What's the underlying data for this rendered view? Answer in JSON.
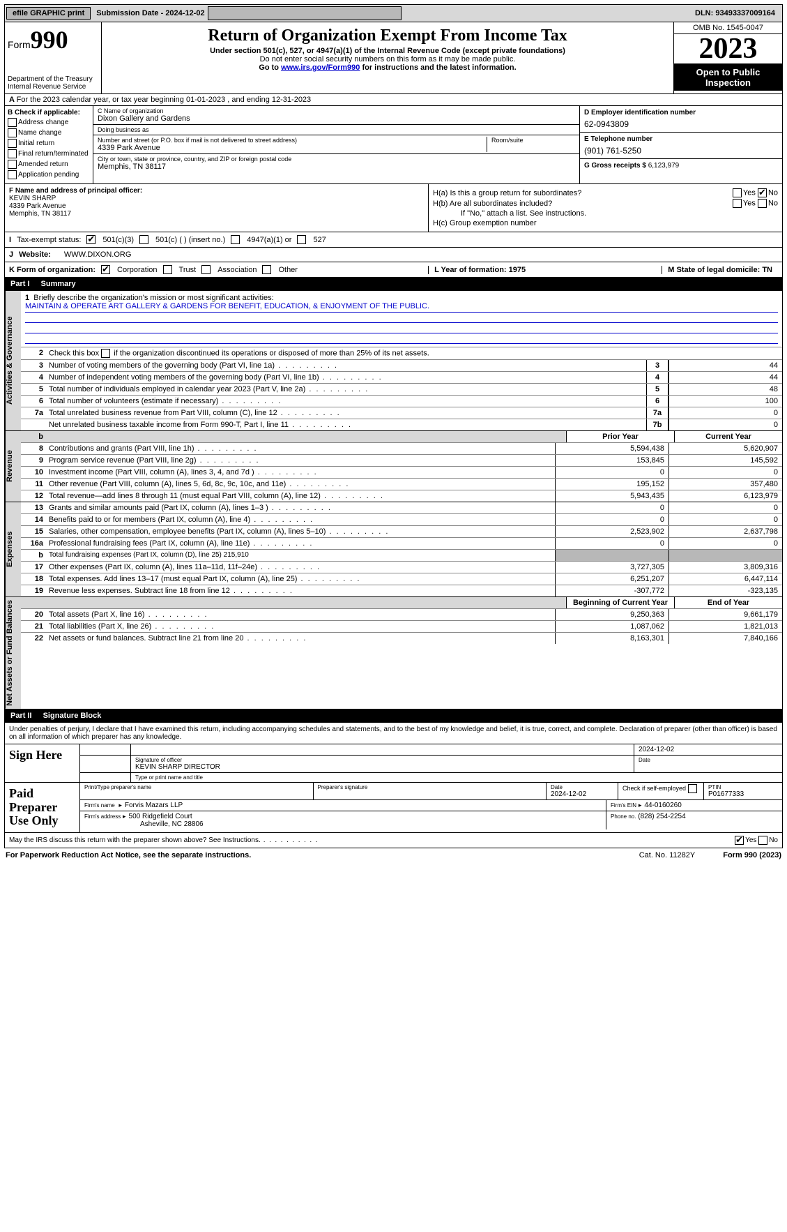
{
  "topbar": {
    "efile": "efile GRAPHIC print",
    "submission": "Submission Date - 2024-12-02",
    "dln": "DLN: 93493337009164"
  },
  "header": {
    "form_prefix": "Form",
    "form_no": "990",
    "dept": "Department of the Treasury\nInternal Revenue Service",
    "title": "Return of Organization Exempt From Income Tax",
    "sub1": "Under section 501(c), 527, or 4947(a)(1) of the Internal Revenue Code (except private foundations)",
    "sub2": "Do not enter social security numbers on this form as it may be made public.",
    "sub3_a": "Go to ",
    "sub3_link": "www.irs.gov/Form990",
    "sub3_b": " for instructions and the latest information.",
    "omb": "OMB No. 1545-0047",
    "year": "2023",
    "open": "Open to Public Inspection"
  },
  "A": {
    "text": "For the 2023 calendar year, or tax year beginning 01-01-2023   , and ending 12-31-2023"
  },
  "B": {
    "hdr": "B Check if applicable:",
    "opts": [
      "Address change",
      "Name change",
      "Initial return",
      "Final return/terminated",
      "Amended return",
      "Application pending"
    ]
  },
  "C": {
    "name_lbl": "C Name of organization",
    "name": "Dixon Gallery and Gardens",
    "dba_lbl": "Doing business as",
    "dba": "",
    "street_lbl": "Number and street (or P.O. box if mail is not delivered to street address)",
    "street": "4339 Park Avenue",
    "room_lbl": "Room/suite",
    "city_lbl": "City or town, state or province, country, and ZIP or foreign postal code",
    "city": "Memphis, TN  38117"
  },
  "D": {
    "lbl": "D Employer identification number",
    "val": "62-0943809"
  },
  "E": {
    "lbl": "E Telephone number",
    "val": "(901) 761-5250"
  },
  "G": {
    "lbl": "G Gross receipts $ ",
    "val": "6,123,979"
  },
  "F": {
    "lbl": "F  Name and address of principal officer:",
    "name": "KEVIN SHARP",
    "street": "4339 Park Avenue",
    "city": "Memphis, TN  38117"
  },
  "H": {
    "a": "H(a)  Is this a group return for subordinates?",
    "b": "H(b)  Are all subordinates included?",
    "b2": "If \"No,\" attach a list. See instructions.",
    "c": "H(c)  Group exemption number",
    "yes": "Yes",
    "no": "No"
  },
  "I": {
    "lbl": "Tax-exempt status:",
    "o1": "501(c)(3)",
    "o2": "501(c) (  ) (insert no.)",
    "o3": "4947(a)(1) or",
    "o4": "527"
  },
  "J": {
    "lbl": "Website:",
    "val": "WWW.DIXON.ORG"
  },
  "K": {
    "lbl": "K Form of organization:",
    "o1": "Corporation",
    "o2": "Trust",
    "o3": "Association",
    "o4": "Other",
    "L": "L Year of formation: 1975",
    "M": "M State of legal domicile: TN"
  },
  "part1": {
    "pt": "Part I",
    "title": "Summary"
  },
  "summary": {
    "gov_tab": "Activities & Governance",
    "rev_tab": "Revenue",
    "exp_tab": "Expenses",
    "net_tab": "Net Assets or Fund Balances",
    "l1": "Briefly describe the organization's mission or most significant activities:",
    "l1v": "MAINTAIN & OPERATE ART GALLERY & GARDENS FOR BENEFIT, EDUCATION, & ENJOYMENT OF THE PUBLIC.",
    "l2": "Check this box      if the organization discontinued its operations or disposed of more than 25% of its net assets.",
    "lines_gov": [
      {
        "n": "3",
        "t": "Number of voting members of the governing body (Part VI, line 1a)",
        "k": "3",
        "v2": "44"
      },
      {
        "n": "4",
        "t": "Number of independent voting members of the governing body (Part VI, line 1b)",
        "k": "4",
        "v2": "44"
      },
      {
        "n": "5",
        "t": "Total number of individuals employed in calendar year 2023 (Part V, line 2a)",
        "k": "5",
        "v2": "48"
      },
      {
        "n": "6",
        "t": "Total number of volunteers (estimate if necessary)",
        "k": "6",
        "v2": "100"
      },
      {
        "n": "7a",
        "t": "Total unrelated business revenue from Part VIII, column (C), line 12",
        "k": "7a",
        "v2": "0"
      },
      {
        "n": "",
        "t": "Net unrelated business taxable income from Form 990-T, Part I, line 11",
        "k": "7b",
        "v2": "0"
      }
    ],
    "hdr_b": "b",
    "hdr_prior": "Prior Year",
    "hdr_curr": "Current Year",
    "lines_rev": [
      {
        "n": "8",
        "t": "Contributions and grants (Part VIII, line 1h)",
        "v1": "5,594,438",
        "v2": "5,620,907"
      },
      {
        "n": "9",
        "t": "Program service revenue (Part VIII, line 2g)",
        "v1": "153,845",
        "v2": "145,592"
      },
      {
        "n": "10",
        "t": "Investment income (Part VIII, column (A), lines 3, 4, and 7d )",
        "v1": "0",
        "v2": "0"
      },
      {
        "n": "11",
        "t": "Other revenue (Part VIII, column (A), lines 5, 6d, 8c, 9c, 10c, and 11e)",
        "v1": "195,152",
        "v2": "357,480"
      },
      {
        "n": "12",
        "t": "Total revenue—add lines 8 through 11 (must equal Part VIII, column (A), line 12)",
        "v1": "5,943,435",
        "v2": "6,123,979"
      }
    ],
    "lines_exp": [
      {
        "n": "13",
        "t": "Grants and similar amounts paid (Part IX, column (A), lines 1–3 )",
        "v1": "0",
        "v2": "0"
      },
      {
        "n": "14",
        "t": "Benefits paid to or for members (Part IX, column (A), line 4)",
        "v1": "0",
        "v2": "0"
      },
      {
        "n": "15",
        "t": "Salaries, other compensation, employee benefits (Part IX, column (A), lines 5–10)",
        "v1": "2,523,902",
        "v2": "2,637,798"
      },
      {
        "n": "16a",
        "t": "Professional fundraising fees (Part IX, column (A), line 11e)",
        "v1": "0",
        "v2": "0"
      },
      {
        "n": "b",
        "t": "Total fundraising expenses (Part IX, column (D), line 25) 215,910",
        "shade": true
      },
      {
        "n": "17",
        "t": "Other expenses (Part IX, column (A), lines 11a–11d, 11f–24e)",
        "v1": "3,727,305",
        "v2": "3,809,316"
      },
      {
        "n": "18",
        "t": "Total expenses. Add lines 13–17 (must equal Part IX, column (A), line 25)",
        "v1": "6,251,207",
        "v2": "6,447,114"
      },
      {
        "n": "19",
        "t": "Revenue less expenses. Subtract line 18 from line 12",
        "v1": "-307,772",
        "v2": "-323,135"
      }
    ],
    "hdr_beg": "Beginning of Current Year",
    "hdr_end": "End of Year",
    "lines_net": [
      {
        "n": "20",
        "t": "Total assets (Part X, line 16)",
        "v1": "9,250,363",
        "v2": "9,661,179"
      },
      {
        "n": "21",
        "t": "Total liabilities (Part X, line 26)",
        "v1": "1,087,062",
        "v2": "1,821,013"
      },
      {
        "n": "22",
        "t": "Net assets or fund balances. Subtract line 21 from line 20",
        "v1": "8,163,301",
        "v2": "7,840,166"
      }
    ]
  },
  "part2": {
    "pt": "Part II",
    "title": "Signature Block"
  },
  "sig": {
    "decl": "Under penalties of perjury, I declare that I have examined this return, including accompanying schedules and statements, and to the best of my knowledge and belief, it is true, correct, and complete. Declaration of preparer (other than officer) is based on all information of which preparer has any knowledge.",
    "sign_here": "Sign Here",
    "sig_officer_lbl": "Signature of officer",
    "sig_officer": "KEVIN SHARP  DIRECTOR",
    "sig_type_lbl": "Type or print name and title",
    "sig_date": "2024-12-02",
    "date_lbl": "Date",
    "paid": "Paid Preparer Use Only",
    "prep_name_lbl": "Print/Type preparer's name",
    "prep_sig_lbl": "Preparer's signature",
    "prep_date": "2024-12-02",
    "prep_check": "Check         if self-employed",
    "ptin_lbl": "PTIN",
    "ptin": "P01677333",
    "firm_name_lbl": "Firm's name",
    "firm_name": "Forvis Mazars LLP",
    "firm_ein_lbl": "Firm's EIN",
    "firm_ein": "44-0160260",
    "firm_addr_lbl": "Firm's address",
    "firm_addr1": "500 Ridgefield Court",
    "firm_addr2": "Asheville, NC  28806",
    "phone_lbl": "Phone no.",
    "phone": "(828) 254-2254",
    "discuss": "May the IRS discuss this return with the preparer shown above? See Instructions.",
    "yes": "Yes",
    "no": "No"
  },
  "footer": {
    "pra": "For Paperwork Reduction Act Notice, see the separate instructions.",
    "cat": "Cat. No. 11282Y",
    "form": "Form 990 (2023)"
  },
  "colors": {
    "gray": "#d8d8d8",
    "darkgray": "#b8b8b8",
    "link": "#0000cc"
  }
}
